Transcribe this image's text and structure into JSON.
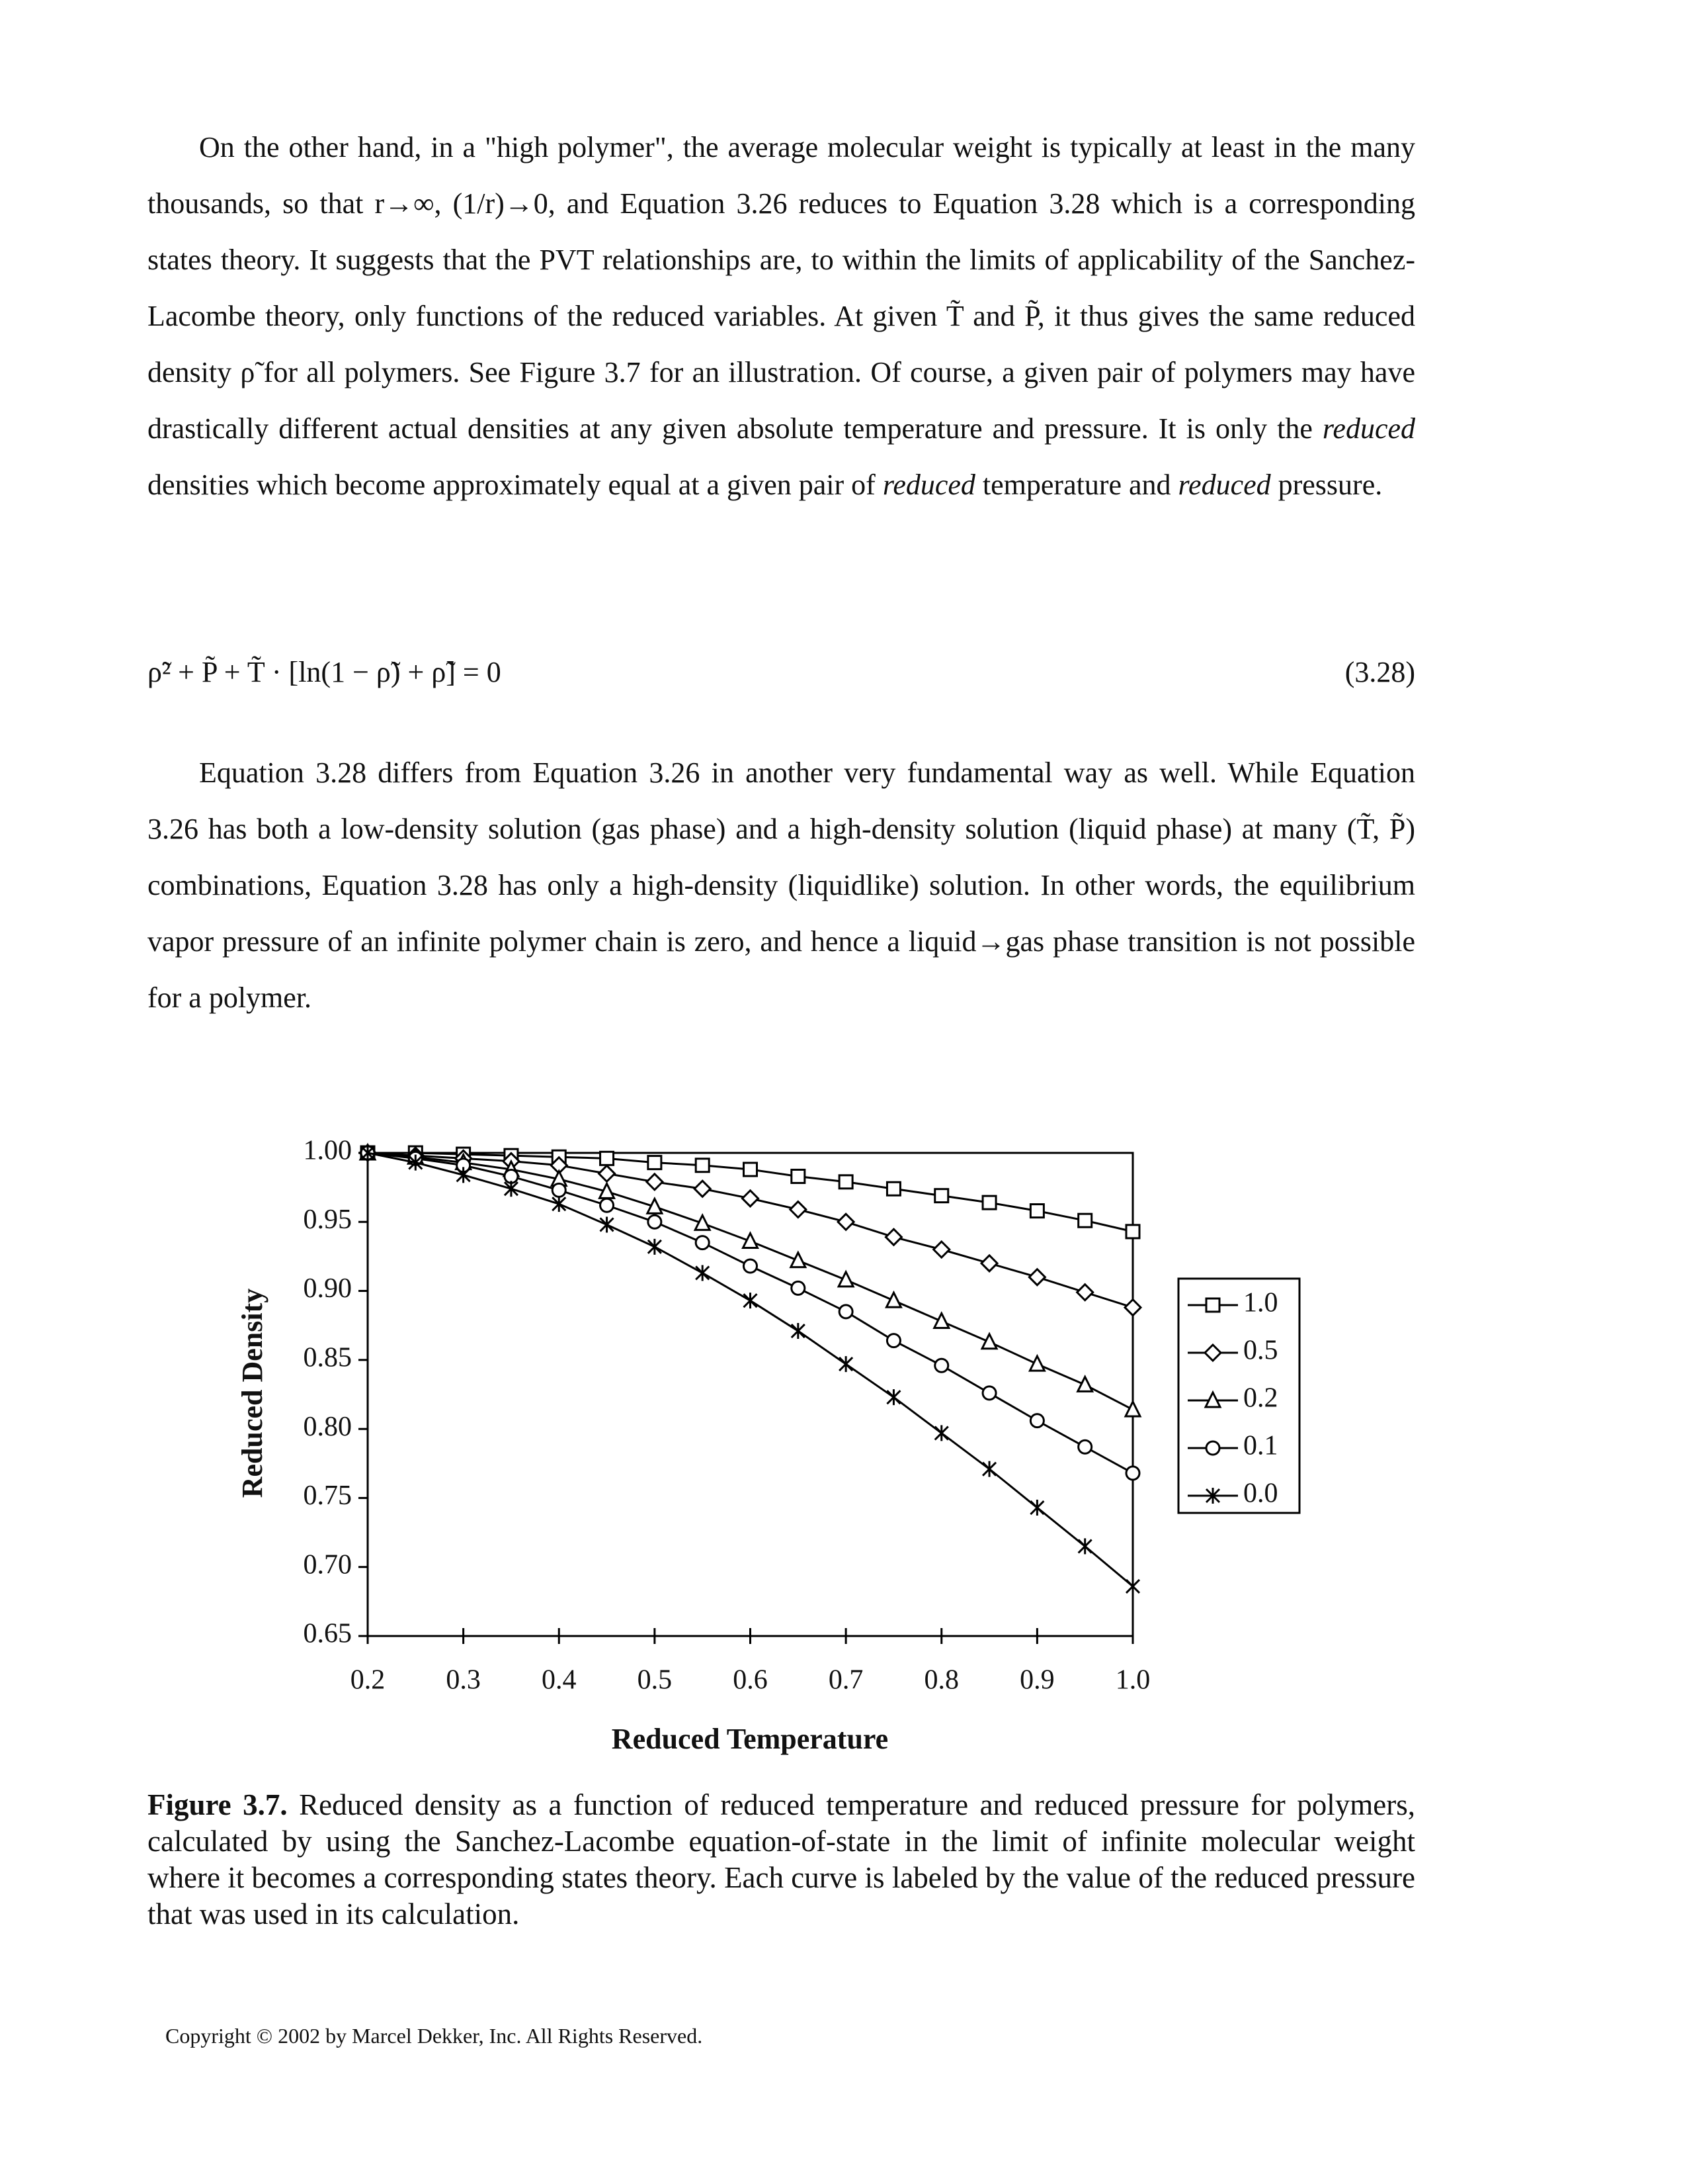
{
  "body": {
    "paragraphs": [
      [
        "On the other hand, in a \"high polymer\", the average molecular weight is typically at least in the many thousands, so that r→∞, (1/r)→0, and Equation 3.26 reduces to Equation 3.28 which is a corresponding states theory. It suggests that the PVT relationships are, to within the limits of applicability of the Sanchez-Lacombe theory, only functions of the reduced variables. At given T̃ and P̃, it thus gives the same reduced density ρ̃ for all polymers. See Figure 3.7 for an illustration. Of course, a given pair of polymers may have drastically different actual densities at any given absolute temperature and pressure. It is only the ",
        "reduced",
        " densities which become approximately equal at a given pair of ",
        "reduced",
        " temperature and ",
        "reduced",
        " pressure."
      ],
      [
        "Equation 3.28 differs from Equation 3.26 in another very fundamental way as well. While Equation 3.26 has both a low-density solution (gas phase) and a high-density solution (liquid phase) at many (T̃, P̃) combinations, Equation 3.28 has only a high-density (liquidlike) solution. In other words, the equilibrium vapor pressure of an infinite polymer chain is zero, and hence a liquid→gas phase transition is not possible for a polymer."
      ]
    ],
    "equation": {
      "text": "ρ̃² + P̃ + T̃ · [ln(1 − ρ̃) + ρ̃] = 0",
      "number": "(3.28)"
    }
  },
  "chart_data": {
    "type": "line",
    "x_label": "Reduced Temperature",
    "y_label": "Reduced Density",
    "x": [
      0.2,
      0.25,
      0.3,
      0.35,
      0.4,
      0.45,
      0.5,
      0.55,
      0.6,
      0.65,
      0.7,
      0.75,
      0.8,
      0.85,
      0.9,
      0.95,
      1.0
    ],
    "series": [
      {
        "name": "1.0",
        "color": "#000000",
        "marker": "square",
        "values": [
          1.0,
          1.0,
          0.999,
          0.998,
          0.997,
          0.996,
          0.993,
          0.991,
          0.988,
          0.983,
          0.979,
          0.974,
          0.969,
          0.964,
          0.958,
          0.951,
          0.943
        ]
      },
      {
        "name": "0.5",
        "color": "#000000",
        "marker": "diamond",
        "values": [
          1.0,
          0.998,
          0.996,
          0.994,
          0.991,
          0.985,
          0.979,
          0.974,
          0.967,
          0.959,
          0.95,
          0.939,
          0.93,
          0.92,
          0.91,
          0.899,
          0.888
        ]
      },
      {
        "name": "0.2",
        "color": "#000000",
        "marker": "triangle",
        "values": [
          1.0,
          0.997,
          0.993,
          0.988,
          0.981,
          0.972,
          0.961,
          0.949,
          0.936,
          0.922,
          0.908,
          0.893,
          0.878,
          0.863,
          0.847,
          0.832,
          0.814
        ]
      },
      {
        "name": "0.1",
        "color": "#000000",
        "marker": "circle",
        "values": [
          1.0,
          0.996,
          0.991,
          0.983,
          0.973,
          0.962,
          0.95,
          0.935,
          0.918,
          0.902,
          0.885,
          0.864,
          0.846,
          0.826,
          0.806,
          0.787,
          0.768
        ]
      },
      {
        "name": "0.0",
        "color": "#000000",
        "marker": "star",
        "values": [
          1.0,
          0.993,
          0.984,
          0.974,
          0.963,
          0.948,
          0.932,
          0.913,
          0.893,
          0.871,
          0.847,
          0.823,
          0.797,
          0.771,
          0.743,
          0.715,
          0.686
        ]
      }
    ],
    "xlim": [
      0.2,
      1.0
    ],
    "ylim": [
      0.65,
      1.0
    ],
    "xticks": [
      0.2,
      0.3,
      0.4,
      0.5,
      0.6,
      0.7,
      0.8,
      0.9,
      {
        "value": 1.0,
        "label": "1.0"
      }
    ],
    "yticks": [
      0.65,
      {
        "value": 0.7,
        "label": "0.70"
      },
      0.75,
      {
        "value": 0.8,
        "label": "0.80"
      },
      0.85,
      {
        "value": 0.9,
        "label": "0.90"
      },
      0.95,
      {
        "value": 1.0,
        "label": "1.00"
      }
    ],
    "grid": false,
    "legend": "right"
  },
  "caption": {
    "label": "Figure 3.7.",
    "text": " Reduced density as a function of reduced temperature and reduced pressure for polymers, calculated by using the Sanchez-Lacombe equation-of-state in the limit of infinite molecular weight where it becomes a corresponding states theory. Each curve is labeled by the value of the reduced pressure that was used in its calculation."
  },
  "footer": {
    "copyright": "Copyright © 2002 by Marcel Dekker, Inc. All Rights Reserved."
  }
}
